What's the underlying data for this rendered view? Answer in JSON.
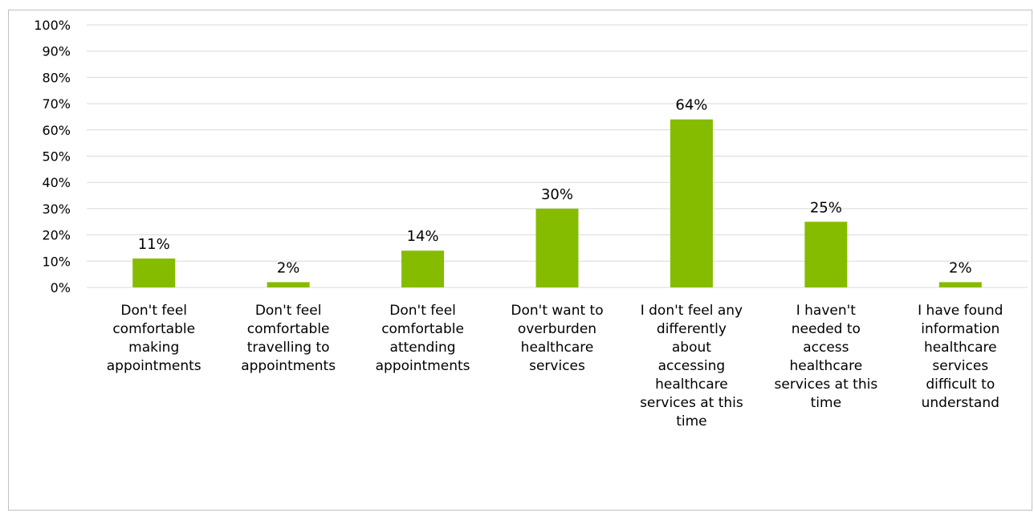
{
  "chart_data": {
    "type": "bar",
    "categories": [
      "Don't feel comfortable making appointments",
      "Don't feel comfortable travelling to appointments",
      "Don't feel comfortable attending appointments",
      "Don't want to overburden healthcare services",
      "I don't feel any differently about accessing healthcare services at this time",
      "I haven't needed to access healthcare services at this time",
      "I have found information healthcare services difficult to understand"
    ],
    "category_lines": [
      [
        "Don't feel",
        "comfortable",
        "making",
        "appointments"
      ],
      [
        "Don't feel",
        "comfortable",
        "travelling to",
        "appointments"
      ],
      [
        "Don't feel",
        "comfortable",
        "attending",
        "appointments"
      ],
      [
        "Don't want to",
        "overburden",
        "healthcare",
        "services"
      ],
      [
        "I don't feel any",
        "differently",
        "about",
        "accessing",
        "healthcare",
        "services at this",
        "time"
      ],
      [
        "I haven't",
        "needed to",
        "access",
        "healthcare",
        "services at this",
        "time"
      ],
      [
        "I have found",
        "information",
        "healthcare",
        "services",
        "difficult to",
        "understand"
      ]
    ],
    "values": [
      11,
      2,
      14,
      30,
      64,
      25,
      2
    ],
    "data_labels": [
      "11%",
      "2%",
      "14%",
      "30%",
      "64%",
      "25%",
      "2%"
    ],
    "ylim": [
      0,
      100
    ],
    "yticks": [
      0,
      10,
      20,
      30,
      40,
      50,
      60,
      70,
      80,
      90,
      100
    ],
    "ytick_labels": [
      "0%",
      "10%",
      "20%",
      "30%",
      "40%",
      "50%",
      "60%",
      "70%",
      "80%",
      "90%",
      "100%"
    ],
    "grid": true,
    "legend": "none",
    "bar_color": "#86bc00"
  }
}
